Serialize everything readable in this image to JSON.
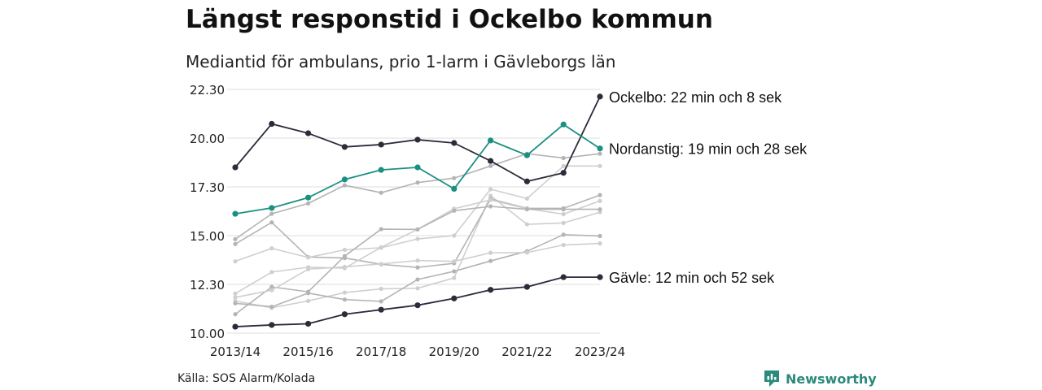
{
  "title": "Längst responstid i Ockelbo kommun",
  "subtitle": "Mediantid för ambulans, prio 1-larm i Gävleborgs län",
  "source": "Källa: SOS Alarm/Kolada",
  "brand": {
    "name": "Newsworthy",
    "color": "#2a8a7c",
    "icon": "newsworthy-logo-icon"
  },
  "colors": {
    "dark": "#2b2b3a",
    "teal": "#1a9082",
    "gray": "#b4b4b4",
    "light_gray": "#cfcfcf",
    "grid": "#e3e3e3"
  },
  "chart_data": {
    "type": "line",
    "title": "Längst responstid i Ockelbo kommun",
    "subtitle": "Mediantid för ambulans, prio 1-larm i Gävleborgs län",
    "grid": true,
    "ylim": [
      10,
      22.5
    ],
    "y_ticks": [
      {
        "value": 10,
        "label": "10.00"
      },
      {
        "value": 12.5,
        "label": "12.30"
      },
      {
        "value": 15,
        "label": "15.00"
      },
      {
        "value": 17.5,
        "label": "17.30"
      },
      {
        "value": 20,
        "label": "20.00"
      },
      {
        "value": 22.5,
        "label": "22.30"
      }
    ],
    "x": [
      "2013/14",
      "2014/15",
      "2015/16",
      "2016/17",
      "2017/18",
      "2018/19",
      "2019/20",
      "2020/21",
      "2021/22",
      "2022/23",
      "2023/24"
    ],
    "x_tick_labels": [
      "2013/14",
      "2015/16",
      "2017/18",
      "2019/20",
      "2021/22",
      "2023/24"
    ],
    "highlighted_series": [
      {
        "name": "Ockelbo",
        "label": "Ockelbo: 22 min och 8 sek",
        "color": "#2b2b3a",
        "values": [
          18.5,
          20.73,
          20.25,
          19.55,
          19.67,
          19.92,
          19.75,
          18.83,
          17.78,
          18.22,
          22.13
        ]
      },
      {
        "name": "Nordanstig",
        "label": "Nordanstig: 19 min och 28 sek",
        "color": "#1a9082",
        "values": [
          16.12,
          16.42,
          16.95,
          17.88,
          18.37,
          18.5,
          17.4,
          19.88,
          19.12,
          20.7,
          19.47
        ]
      },
      {
        "name": "Gävle",
        "label": "Gävle: 12 min och 52 sek",
        "color": "#2b2b3a",
        "values": [
          10.33,
          10.42,
          10.48,
          10.97,
          11.2,
          11.43,
          11.78,
          12.22,
          12.37,
          12.87,
          12.87
        ]
      }
    ],
    "background_series": [
      {
        "values": [
          14.82,
          16.12,
          16.65,
          17.58,
          17.2,
          17.72,
          17.95,
          18.57,
          19.2,
          18.98,
          19.2
        ]
      },
      {
        "values": [
          11.65,
          11.3,
          11.65,
          12.08,
          12.27,
          12.3,
          12.83,
          17.05,
          15.58,
          15.65,
          16.2
        ]
      },
      {
        "values": [
          14.57,
          15.68,
          13.9,
          13.85,
          13.53,
          13.37,
          13.58,
          16.88,
          16.4,
          16.4,
          17.08
        ]
      },
      {
        "values": [
          12.03,
          13.13,
          13.38,
          13.33,
          14.4,
          15.32,
          16.38,
          16.83,
          16.38,
          16.1,
          16.78
        ]
      },
      {
        "values": [
          11.53,
          11.35,
          12.05,
          11.72,
          11.63,
          12.75,
          13.17,
          13.7,
          14.2,
          15.05,
          14.98
        ]
      },
      {
        "values": [
          13.68,
          14.35,
          13.88,
          14.27,
          14.38,
          14.83,
          15.0,
          17.38,
          16.9,
          18.57,
          18.57
        ]
      },
      {
        "values": [
          10.97,
          12.37,
          12.12,
          13.95,
          15.33,
          15.32,
          16.28,
          16.5,
          16.35,
          16.35,
          16.35
        ]
      },
      {
        "values": [
          11.83,
          12.2,
          13.28,
          13.4,
          13.55,
          13.72,
          13.68,
          14.12,
          14.13,
          14.52,
          14.6
        ]
      }
    ]
  }
}
